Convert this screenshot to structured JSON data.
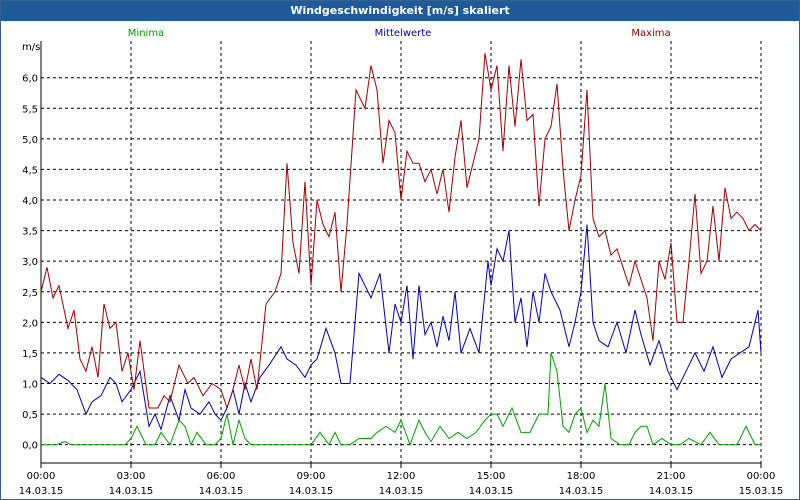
{
  "window": {
    "title": "Windgeschwindigkeit [m/s] skaliert"
  },
  "chart_data": {
    "type": "line",
    "title": "Windgeschwindigkeit [m/s] skaliert",
    "ylabel": "m/s",
    "xlabel": "",
    "ylim": [
      -0.3,
      6.6
    ],
    "xlim": [
      0,
      24
    ],
    "yticks": [
      "0,0",
      "0,5",
      "1,0",
      "1,5",
      "2,0",
      "2,5",
      "3,0",
      "3,5",
      "4,0",
      "4,5",
      "5,0",
      "5,5",
      "6,0"
    ],
    "ytick_values": [
      0,
      0.5,
      1.0,
      1.5,
      2.0,
      2.5,
      3.0,
      3.5,
      4.0,
      4.5,
      5.0,
      5.5,
      6.0
    ],
    "xticks": [
      {
        "time": "00:00",
        "date": "14.03.15"
      },
      {
        "time": "03:00",
        "date": "14.03.15"
      },
      {
        "time": "06:00",
        "date": "14.03.15"
      },
      {
        "time": "09:00",
        "date": "14.03.15"
      },
      {
        "time": "12:00",
        "date": "14.03.15"
      },
      {
        "time": "15:00",
        "date": "14.03.15"
      },
      {
        "time": "18:00",
        "date": "14.03.15"
      },
      {
        "time": "21:00",
        "date": "14.03.15"
      },
      {
        "time": "00:00",
        "date": "15.03.15"
      }
    ],
    "xtick_hours": [
      0,
      3,
      6,
      9,
      12,
      15,
      18,
      21,
      24
    ],
    "grid": true,
    "legend": "top",
    "series": [
      {
        "name": "Minima",
        "color": "#00a000",
        "x": [
          0,
          0.5,
          0.8,
          1,
          1.5,
          2,
          2.5,
          2.8,
          3,
          3.2,
          3.5,
          3.8,
          4,
          4.3,
          4.6,
          4.8,
          5,
          5.2,
          5.5,
          5.8,
          6,
          6.2,
          6.4,
          6.6,
          6.8,
          7,
          7.3,
          7.6,
          8,
          8.5,
          9,
          9.3,
          9.6,
          9.8,
          10,
          10.3,
          10.6,
          11,
          11.2,
          11.5,
          11.8,
          12,
          12.3,
          12.6,
          12.8,
          13,
          13.3,
          13.6,
          13.9,
          14.2,
          14.5,
          14.8,
          15,
          15.2,
          15.4,
          15.7,
          16,
          16.3,
          16.6,
          16.9,
          17,
          17.2,
          17.4,
          17.6,
          17.8,
          18,
          18.2,
          18.4,
          18.6,
          18.8,
          19,
          19.3,
          19.6,
          19.8,
          20,
          20.2,
          20.4,
          20.7,
          21,
          21.3,
          21.6,
          22,
          22.3,
          22.6,
          22.9,
          23.2,
          23.5,
          23.8,
          24
        ],
        "values": [
          0,
          0,
          0.05,
          0,
          0,
          0,
          0,
          0,
          0.1,
          0.3,
          0,
          0,
          0.2,
          0,
          0.4,
          0.3,
          0,
          0.2,
          0,
          0,
          0.1,
          0.5,
          0,
          0.4,
          0.1,
          0,
          0,
          0,
          0,
          0,
          0,
          0.2,
          0,
          0.2,
          0,
          0,
          0.1,
          0.1,
          0.2,
          0.3,
          0.2,
          0.4,
          0,
          0.4,
          0.2,
          0.05,
          0.3,
          0.1,
          0.2,
          0.1,
          0.2,
          0.4,
          0.5,
          0.5,
          0.3,
          0.6,
          0.2,
          0.2,
          0.5,
          0.5,
          1.5,
          1.2,
          0.3,
          0.2,
          0.5,
          0.6,
          0.2,
          0.4,
          0.3,
          1.0,
          0.1,
          0,
          0,
          0.2,
          0.3,
          0.3,
          0,
          0.1,
          0,
          0,
          0.1,
          0,
          0.2,
          0,
          0,
          0,
          0.3,
          0,
          0
        ],
        "label": "Minima"
      },
      {
        "name": "Mittelwerte",
        "color": "#0000b0",
        "x": [
          0,
          0.3,
          0.6,
          0.9,
          1.2,
          1.5,
          1.7,
          2,
          2.3,
          2.5,
          2.7,
          3,
          3.3,
          3.6,
          3.8,
          4,
          4.3,
          4.6,
          4.8,
          5,
          5.3,
          5.6,
          5.8,
          6,
          6.2,
          6.4,
          6.6,
          6.8,
          7,
          7.3,
          7.6,
          8,
          8.2,
          8.5,
          8.8,
          9,
          9.2,
          9.5,
          9.8,
          10,
          10.3,
          10.6,
          11,
          11.3,
          11.6,
          11.8,
          12,
          12.2,
          12.4,
          12.6,
          12.8,
          13,
          13.2,
          13.4,
          13.6,
          13.8,
          14,
          14.3,
          14.6,
          14.9,
          15,
          15.2,
          15.4,
          15.6,
          15.8,
          16,
          16.2,
          16.4,
          16.6,
          16.8,
          17,
          17.3,
          17.6,
          17.8,
          18,
          18.2,
          18.4,
          18.6,
          18.9,
          19.2,
          19.5,
          19.8,
          20,
          20.3,
          20.6,
          20.9,
          21.2,
          21.5,
          21.8,
          22.1,
          22.4,
          22.7,
          23,
          23.3,
          23.6,
          23.9,
          24
        ],
        "values": [
          1.1,
          1.0,
          1.15,
          1.05,
          0.9,
          0.5,
          0.7,
          0.8,
          1.1,
          1.0,
          0.7,
          0.9,
          1.2,
          0.3,
          0.5,
          0.25,
          0.8,
          0.4,
          0.9,
          0.6,
          0.5,
          0.7,
          0.5,
          0.4,
          0.6,
          0.9,
          0.5,
          1.0,
          0.7,
          1.1,
          1.3,
          1.6,
          1.4,
          1.3,
          1.1,
          1.3,
          1.4,
          1.9,
          1.5,
          1.0,
          1.0,
          2.8,
          2.4,
          2.8,
          1.5,
          2.3,
          2.0,
          2.6,
          1.4,
          2.6,
          1.8,
          2.0,
          1.6,
          2.1,
          1.7,
          2.5,
          1.5,
          1.9,
          1.5,
          3.0,
          2.6,
          3.2,
          3.0,
          3.5,
          2.0,
          2.4,
          1.6,
          2.5,
          2.0,
          2.8,
          2.5,
          2.2,
          1.6,
          2.0,
          2.5,
          3.6,
          2.0,
          1.7,
          1.6,
          2.0,
          1.5,
          2.2,
          1.8,
          1.3,
          1.7,
          1.2,
          0.9,
          1.2,
          1.5,
          1.2,
          1.6,
          1.1,
          1.4,
          1.5,
          1.6,
          2.2,
          1.5
        ],
        "label": "Mittelwerte"
      },
      {
        "name": "Maxima",
        "color": "#a00000",
        "x": [
          0,
          0.2,
          0.4,
          0.6,
          0.9,
          1.1,
          1.3,
          1.5,
          1.7,
          1.9,
          2.1,
          2.3,
          2.5,
          2.7,
          2.9,
          3.1,
          3.3,
          3.6,
          3.9,
          4.1,
          4.3,
          4.6,
          4.9,
          5.1,
          5.4,
          5.7,
          6,
          6.2,
          6.4,
          6.6,
          6.8,
          7,
          7.2,
          7.5,
          7.8,
          8,
          8.2,
          8.4,
          8.6,
          8.8,
          9,
          9.2,
          9.4,
          9.6,
          9.8,
          10,
          10.2,
          10.5,
          10.8,
          11,
          11.2,
          11.4,
          11.6,
          11.8,
          12,
          12.2,
          12.4,
          12.6,
          12.8,
          13,
          13.2,
          13.4,
          13.6,
          13.8,
          14,
          14.2,
          14.4,
          14.6,
          14.8,
          15,
          15.2,
          15.4,
          15.6,
          15.8,
          16,
          16.2,
          16.4,
          16.6,
          16.8,
          17,
          17.2,
          17.4,
          17.6,
          17.8,
          18,
          18.2,
          18.4,
          18.6,
          18.8,
          19,
          19.2,
          19.4,
          19.6,
          19.8,
          20,
          20.2,
          20.4,
          20.6,
          20.8,
          21,
          21.2,
          21.4,
          21.6,
          21.8,
          22,
          22.2,
          22.4,
          22.6,
          22.8,
          23,
          23.2,
          23.4,
          23.6,
          23.8,
          24
        ],
        "values": [
          2.5,
          2.9,
          2.4,
          2.6,
          1.9,
          2.2,
          1.4,
          1.2,
          1.6,
          1.1,
          2.3,
          1.9,
          2.0,
          1.2,
          1.5,
          0.9,
          1.7,
          0.6,
          0.6,
          0.8,
          0.7,
          1.3,
          1.0,
          1.1,
          0.8,
          1.0,
          0.9,
          0.6,
          0.9,
          1.3,
          0.9,
          1.4,
          0.9,
          2.3,
          2.5,
          2.8,
          4.6,
          3.3,
          2.8,
          4.3,
          2.6,
          4.0,
          3.6,
          3.4,
          3.8,
          2.5,
          3.6,
          5.8,
          5.5,
          6.2,
          5.8,
          4.6,
          5.3,
          5.1,
          4.0,
          4.8,
          4.6,
          4.6,
          4.3,
          4.5,
          4.1,
          4.5,
          3.8,
          4.7,
          5.3,
          4.2,
          4.6,
          5.0,
          6.4,
          5.8,
          6.2,
          4.8,
          6.2,
          5.2,
          6.3,
          5.3,
          5.4,
          3.9,
          5.0,
          5.2,
          5.9,
          4.5,
          3.5,
          4.0,
          4.4,
          5.8,
          3.7,
          3.4,
          3.5,
          3.1,
          3.2,
          2.9,
          2.6,
          3.0,
          2.7,
          2.4,
          1.7,
          3.0,
          2.7,
          3.3,
          2.0,
          2.0,
          3.0,
          4.1,
          2.8,
          3.0,
          3.9,
          3.0,
          4.2,
          3.7,
          3.8,
          3.7,
          3.5,
          3.6,
          3.5
        ],
        "label": "Maxima"
      }
    ]
  }
}
